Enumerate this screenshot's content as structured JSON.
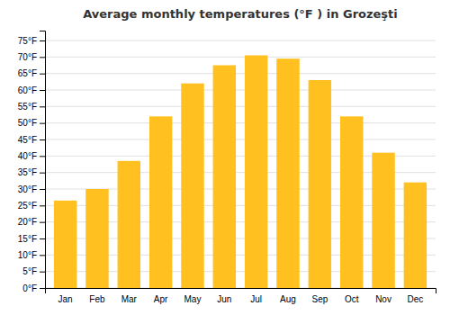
{
  "chart_data": {
    "type": "bar",
    "title": "Average monthly temperatures (°F ) in Grozeşti",
    "categories": [
      "Jan",
      "Feb",
      "Mar",
      "Apr",
      "May",
      "Jun",
      "Jul",
      "Aug",
      "Sep",
      "Oct",
      "Nov",
      "Dec"
    ],
    "values": [
      26.5,
      30,
      38.5,
      52,
      62,
      67.5,
      70.5,
      69.5,
      63,
      52,
      41,
      32
    ],
    "color": "#FFC020",
    "ylim": [
      0,
      78
    ],
    "yticks": [
      {
        "value": 0,
        "label": "0°F"
      },
      {
        "value": 5,
        "label": "5°F"
      },
      {
        "value": 10,
        "label": "10°F"
      },
      {
        "value": 15,
        "label": "15°F"
      },
      {
        "value": 20,
        "label": "20°F"
      },
      {
        "value": 25,
        "label": "25°F"
      },
      {
        "value": 30,
        "label": "30°F"
      },
      {
        "value": 35,
        "label": "35°F"
      },
      {
        "value": 40,
        "label": "40°F"
      },
      {
        "value": 45,
        "label": "45°F"
      },
      {
        "value": 50,
        "label": "50°F"
      },
      {
        "value": 55,
        "label": "55°F"
      },
      {
        "value": 60,
        "label": "60°F"
      },
      {
        "value": 65,
        "label": "65°F"
      },
      {
        "value": 70,
        "label": "70°F"
      },
      {
        "value": 75,
        "label": "75°F"
      }
    ],
    "grid": true
  }
}
